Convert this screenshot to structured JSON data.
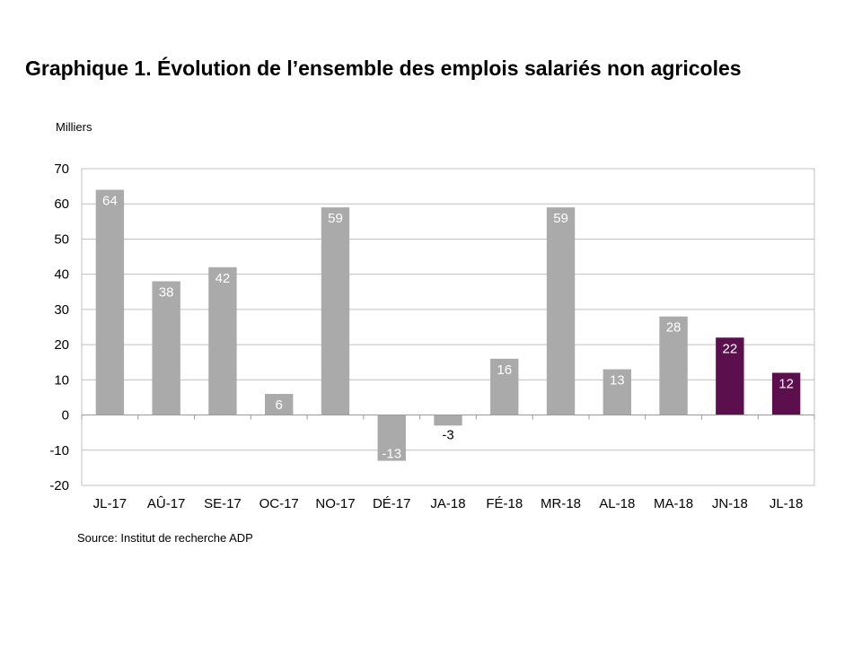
{
  "chart_data": {
    "type": "bar",
    "title": "Graphique 1. Évolution de l’ensemble des emplois salariés non agricoles",
    "unit_label": "Milliers",
    "source": "Source: Institut de recherche ADP",
    "xlabel": "",
    "ylabel": "",
    "ylim": [
      -20,
      70
    ],
    "yticks": [
      -20,
      -10,
      0,
      10,
      20,
      30,
      40,
      50,
      60,
      70
    ],
    "grid": true,
    "categories": [
      "JL-17",
      "AÛ-17",
      "SE-17",
      "OC-17",
      "NO-17",
      "DÉ-17",
      "JA-18",
      "FÉ-18",
      "MR-18",
      "AL-18",
      "MA-18",
      "JN-18",
      "JL-18"
    ],
    "values": [
      64,
      38,
      42,
      6,
      59,
      -13,
      -3,
      16,
      59,
      13,
      28,
      22,
      12
    ],
    "value_labels": [
      "64",
      "38",
      "42",
      "6",
      "59",
      "-13",
      "-3",
      "16",
      "59",
      "13",
      "28",
      "22",
      "12"
    ],
    "bar_colors": [
      "#aaaaaa",
      "#aaaaaa",
      "#aaaaaa",
      "#aaaaaa",
      "#aaaaaa",
      "#aaaaaa",
      "#aaaaaa",
      "#aaaaaa",
      "#aaaaaa",
      "#aaaaaa",
      "#aaaaaa",
      "#5b0f4d",
      "#5b0f4d"
    ],
    "colors": {
      "gray_bar": "#aaaaaa",
      "highlight_bar": "#5b0f4d",
      "grid": "#c0c0c0"
    }
  }
}
